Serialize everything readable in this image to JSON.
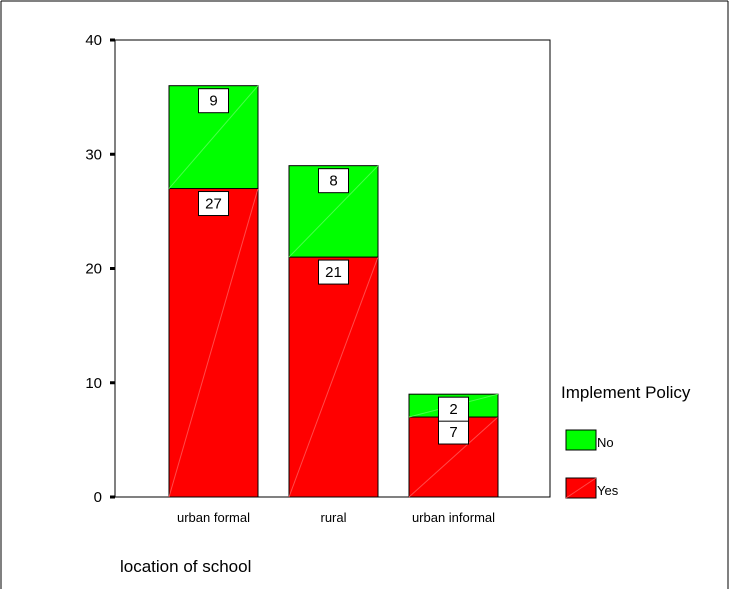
{
  "chart_data": {
    "type": "bar",
    "stacked": true,
    "title": "",
    "xlabel": "location of school",
    "ylabel": "",
    "ylim": [
      0,
      40
    ],
    "yticks": [
      0,
      10,
      20,
      30,
      40
    ],
    "categories": [
      "urban formal",
      "rural",
      "urban informal"
    ],
    "series": [
      {
        "name": "Yes",
        "values": [
          27,
          21,
          7
        ],
        "color": "#ff0000"
      },
      {
        "name": "No",
        "values": [
          9,
          8,
          2
        ],
        "color": "#00ff00"
      }
    ],
    "legend": {
      "title": "Implement Policy",
      "position": "right",
      "entries": [
        "No",
        "Yes"
      ]
    },
    "grid": false,
    "data_labels": true
  }
}
